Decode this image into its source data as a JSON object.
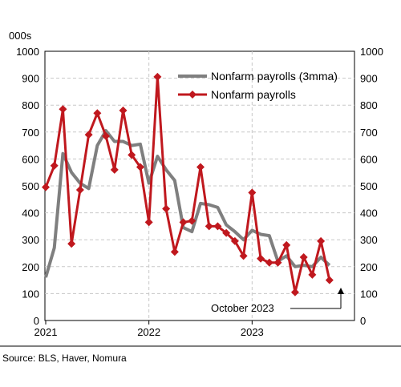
{
  "chart_data": {
    "type": "line",
    "unit_label": "000s",
    "y_ticks": [
      0,
      100,
      200,
      300,
      400,
      500,
      600,
      700,
      800,
      900,
      1000
    ],
    "ylim": [
      0,
      1000
    ],
    "x_tick_labels": [
      "2021",
      "2022",
      "2023"
    ],
    "months": [
      "2021-01",
      "2021-02",
      "2021-03",
      "2021-04",
      "2021-05",
      "2021-06",
      "2021-07",
      "2021-08",
      "2021-09",
      "2021-10",
      "2021-11",
      "2021-12",
      "2022-01",
      "2022-02",
      "2022-03",
      "2022-04",
      "2022-05",
      "2022-06",
      "2022-07",
      "2022-08",
      "2022-09",
      "2022-10",
      "2022-11",
      "2022-12",
      "2023-01",
      "2023-02",
      "2023-03",
      "2023-04",
      "2023-05",
      "2023-06",
      "2023-07",
      "2023-08",
      "2023-09",
      "2023-10"
    ],
    "series": [
      {
        "name": "Nonfarm payrolls (3mma)",
        "color": "#7f7f7f",
        "values": [
          160,
          270,
          620,
          550,
          510,
          490,
          650,
          705,
          665,
          665,
          650,
          655,
          510,
          610,
          560,
          520,
          345,
          330,
          435,
          430,
          420,
          355,
          330,
          300,
          335,
          320,
          315,
          220,
          240,
          200,
          205,
          200,
          235,
          205
        ]
      },
      {
        "name": "Nonfarm payrolls",
        "color": "#c0181e",
        "values": [
          495,
          575,
          785,
          285,
          485,
          690,
          770,
          685,
          560,
          780,
          615,
          570,
          365,
          905,
          415,
          255,
          365,
          370,
          570,
          350,
          350,
          325,
          295,
          240,
          475,
          230,
          215,
          215,
          280,
          105,
          235,
          170,
          295,
          150
        ]
      }
    ],
    "annotation": "October 2023",
    "grid": true,
    "legend_position": "top-right",
    "source": "Source: BLS, Haver, Nomura"
  }
}
